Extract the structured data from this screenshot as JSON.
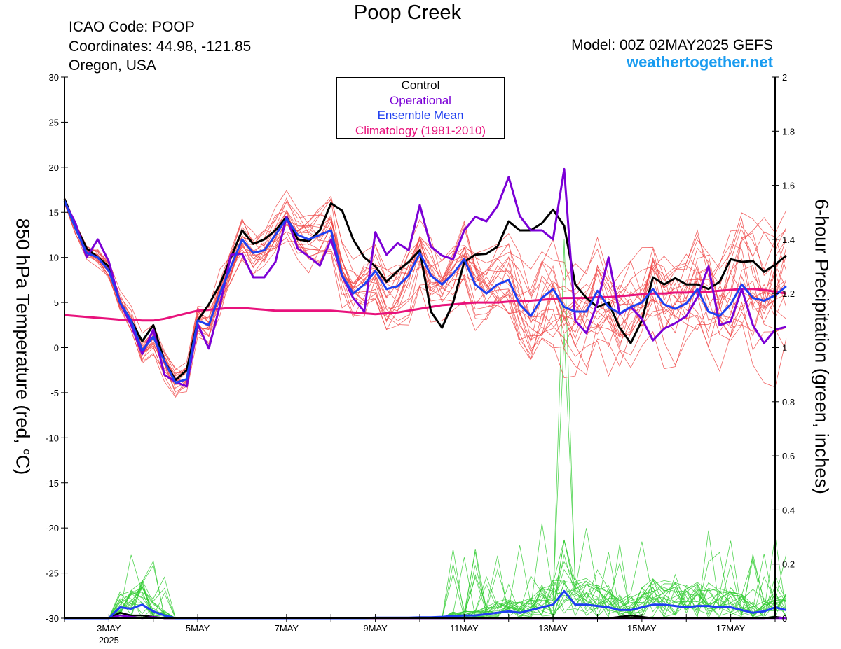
{
  "header": {
    "title": "Poop Creek",
    "icao": "ICAO Code: POOP",
    "coordinates": "Coordinates: 44.98, -121.85",
    "region": "Oregon, USA",
    "model": "Model: 00Z 02MAY2025 GEFS",
    "site": "weathertogether.net"
  },
  "colors": {
    "control": "#000000",
    "operational": "#7b00d6",
    "ensemble_mean": "#1f3ff0",
    "climatology": "#e8127c",
    "members_temp": "#f04848",
    "members_precip": "#33cc33",
    "site": "#1a9cf0"
  },
  "chart_data": {
    "type": "line",
    "ylabel_left": "850 hPa Temperature (red, °C)",
    "ylabel_left_text": "850 hPa Temperature (red, ",
    "ylabel_left_sup": "o",
    "ylabel_left_end": "C)",
    "ylabel_right": "6-hour Precipitation (green, inches)",
    "ylim_left": [
      -30,
      30
    ],
    "ylim_right": [
      0,
      2
    ],
    "yticks_left": [
      30,
      25,
      20,
      15,
      10,
      5,
      0,
      -5,
      -10,
      -15,
      -20,
      -25,
      -30
    ],
    "yticks_right": [
      "2",
      "1.8",
      "1.6",
      "1.4",
      "1.2",
      "1",
      "0.8",
      "0.6",
      "0.4",
      "0.2",
      "0"
    ],
    "x_range_hours": [
      0,
      384
    ],
    "x_step_hours": 6,
    "xticks": [
      {
        "hour": 24,
        "label": "3MAY",
        "sub": "2025"
      },
      {
        "hour": 72,
        "label": "5MAY",
        "sub": ""
      },
      {
        "hour": 120,
        "label": "7MAY",
        "sub": ""
      },
      {
        "hour": 168,
        "label": "9MAY",
        "sub": ""
      },
      {
        "hour": 216,
        "label": "11MAY",
        "sub": ""
      },
      {
        "hour": 264,
        "label": "13MAY",
        "sub": ""
      },
      {
        "hour": 312,
        "label": "15MAY",
        "sub": ""
      },
      {
        "hour": 360,
        "label": "17MAY",
        "sub": ""
      }
    ],
    "legend": {
      "position": "top-center",
      "entries": [
        "Control",
        "Operational",
        "Ensemble Mean",
        "Climatology (1981-2010)"
      ]
    },
    "series": [
      {
        "name": "Control",
        "axis": "left",
        "values": [
          16.5,
          13.5,
          11,
          10,
          9,
          5,
          3,
          0.7,
          2.5,
          -1.5,
          -3.6,
          -2.5,
          3,
          4.8,
          7,
          10,
          13,
          11.5,
          12,
          13,
          14.5,
          12,
          11.8,
          13,
          16,
          15.2,
          12,
          10,
          9,
          7.3,
          8.5,
          9.5,
          10.8,
          4,
          2.2,
          5,
          9.5,
          10.3,
          10.4,
          11.2,
          14,
          13,
          13,
          13.8,
          15.3,
          13.5,
          7,
          5.5,
          4.5,
          5,
          2.2,
          0.5,
          3,
          7.8,
          7,
          7.7,
          7,
          7,
          6.5,
          7.3,
          9.8,
          9.5,
          9.6,
          8.4,
          9.2,
          10.2
        ]
      },
      {
        "name": "Operational",
        "axis": "left",
        "values": [
          16.2,
          13.8,
          10,
          12,
          9.5,
          5,
          2.5,
          -0.7,
          2,
          -3,
          -3.8,
          -4.3,
          2.6,
          -0.1,
          4.7,
          10.3,
          10.4,
          7.8,
          7.8,
          9.5,
          14.5,
          11,
          10.1,
          9.1,
          12,
          8,
          5.5,
          4,
          12.8,
          10.3,
          11.6,
          10.8,
          15.8,
          11.2,
          10.2,
          9.8,
          13,
          14.5,
          14,
          15.7,
          18.9,
          14.6,
          13,
          13,
          12,
          19.8,
          3,
          1.6,
          5,
          10,
          3.7,
          4.5,
          3.2,
          0.8,
          2.1,
          2.7,
          3.5,
          5.6,
          9,
          2.5,
          2.9,
          6.5,
          2.5,
          0.5,
          2,
          2.3
        ]
      },
      {
        "name": "Ensemble Mean",
        "axis": "left",
        "values": [
          16.3,
          13.2,
          10.5,
          10,
          8.5,
          5,
          3,
          -0.3,
          1.2,
          -1.5,
          -3.9,
          -3.5,
          3,
          2.5,
          6,
          9,
          12,
          10.5,
          10.8,
          12.5,
          14.3,
          12.5,
          12,
          12.5,
          13,
          8,
          6,
          7,
          8.5,
          6.5,
          6.8,
          8,
          10.5,
          8,
          7,
          8.2,
          9.8,
          7,
          6,
          7,
          7.5,
          4.8,
          3.5,
          5.5,
          6.5,
          4.5,
          4,
          4,
          6.3,
          4.5,
          3.8,
          4.5,
          5,
          6.5,
          4.8,
          4.3,
          4.9,
          6.5,
          4,
          3.5,
          4.8,
          7,
          5.5,
          5.2,
          5.8,
          6.8
        ]
      },
      {
        "name": "Climatology (1981-2010)",
        "axis": "left",
        "values": [
          3.6,
          3.5,
          3.4,
          3.3,
          3.2,
          3.1,
          3.1,
          3,
          3,
          3.2,
          3.5,
          3.8,
          4.1,
          4.2,
          4.3,
          4.4,
          4.4,
          4.3,
          4.2,
          4.1,
          4.1,
          4.1,
          4.1,
          4.1,
          4.1,
          4,
          3.9,
          3.8,
          3.7,
          3.8,
          3.9,
          4.1,
          4.3,
          4.5,
          4.7,
          4.8,
          4.9,
          5,
          5,
          5,
          5.1,
          5.2,
          5.2,
          5.3,
          5.4,
          5.5,
          5.5,
          5.5,
          5.6,
          5.6,
          5.7,
          5.8,
          5.9,
          6,
          6,
          6.1,
          6.1,
          6.2,
          6.2,
          6.3,
          6.4,
          6.5,
          6.5,
          6.4,
          6.2,
          6
        ]
      },
      {
        "name": "Control precip",
        "axis": "right",
        "values": [
          0,
          0,
          0,
          0,
          0,
          0.02,
          0.01,
          0.01,
          0.005,
          0,
          0,
          0,
          0,
          0,
          0,
          0,
          0,
          0,
          0,
          0,
          0,
          0,
          0,
          0,
          0,
          0,
          0,
          0,
          0,
          0,
          0,
          0,
          0,
          0,
          0,
          0,
          0,
          0,
          0,
          0,
          0,
          0,
          0,
          0,
          0,
          0,
          0,
          0,
          0,
          0,
          0.005,
          0.01,
          0.005,
          0,
          0,
          0,
          0,
          0,
          0,
          0,
          0,
          0,
          0,
          0,
          0.005,
          0
        ]
      },
      {
        "name": "Operational precip",
        "axis": "right",
        "values": [
          0,
          0,
          0,
          0,
          0,
          0.01,
          0.005,
          0,
          0.005,
          0,
          0,
          0,
          0,
          0,
          0,
          0,
          0,
          0,
          0,
          0,
          0,
          0,
          0,
          0,
          0,
          0,
          0,
          0,
          0,
          0,
          0,
          0,
          0,
          0,
          0,
          0,
          0,
          0,
          0,
          0,
          0,
          0,
          0,
          0,
          0,
          0,
          0,
          0,
          0,
          0,
          0,
          0,
          0,
          0,
          0,
          0,
          0,
          0,
          0,
          0,
          0,
          0,
          0,
          0,
          0,
          0
        ]
      },
      {
        "name": "Ensemble Mean precip",
        "axis": "right",
        "values": [
          0,
          0,
          0,
          0,
          0,
          0.04,
          0.035,
          0.05,
          0.025,
          0.01,
          0,
          0,
          0,
          0,
          0,
          0,
          0,
          0,
          0,
          0,
          0,
          0,
          0,
          0,
          0,
          0,
          0,
          0,
          0.002,
          0.002,
          0.002,
          0.002,
          0.003,
          0.003,
          0.005,
          0.008,
          0.01,
          0.01,
          0.015,
          0.02,
          0.025,
          0.02,
          0.03,
          0.04,
          0.05,
          0.1,
          0.05,
          0.05,
          0.045,
          0.04,
          0.03,
          0.03,
          0.04,
          0.05,
          0.05,
          0.045,
          0.04,
          0.045,
          0.045,
          0.04,
          0.04,
          0.03,
          0.02,
          0.025,
          0.04,
          0.03
        ]
      }
    ]
  }
}
